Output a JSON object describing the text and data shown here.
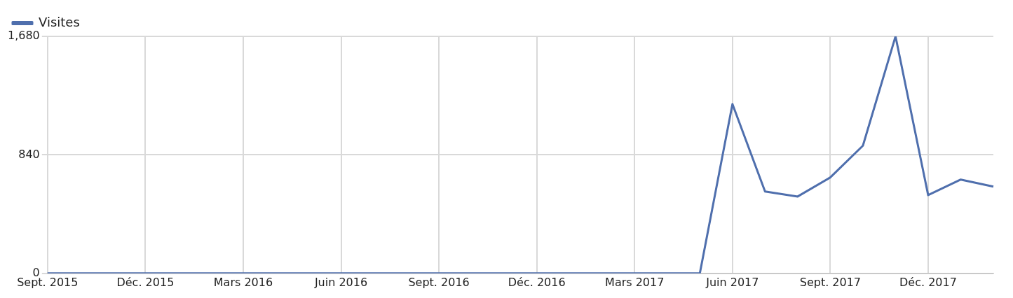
{
  "chart_data": {
    "type": "line",
    "categories": [
      "Sept. 2015",
      null,
      null,
      "Déc. 2015",
      null,
      null,
      "Mars 2016",
      null,
      null,
      "Juin 2016",
      null,
      null,
      "Sept. 2016",
      null,
      null,
      "Déc. 2016",
      null,
      null,
      "Mars 2017",
      null,
      null,
      "Juin 2017",
      null,
      null,
      "Sept. 2017",
      null,
      null,
      "Déc. 2017",
      null,
      null
    ],
    "series": [
      {
        "name": "Visites",
        "color": "#4f6fad",
        "values": [
          0,
          0,
          0,
          0,
          0,
          0,
          0,
          0,
          0,
          0,
          0,
          0,
          0,
          0,
          0,
          0,
          0,
          0,
          0,
          0,
          0,
          1200,
          580,
          545,
          680,
          905,
          1680,
          555,
          665,
          615
        ]
      }
    ],
    "ylim": [
      0,
      1680
    ],
    "yticks": [
      0,
      840,
      {
        "value": 1680,
        "label": "1,680"
      }
    ],
    "grid": true,
    "legend": "top left",
    "marker": "none",
    "line_style": "solid"
  }
}
